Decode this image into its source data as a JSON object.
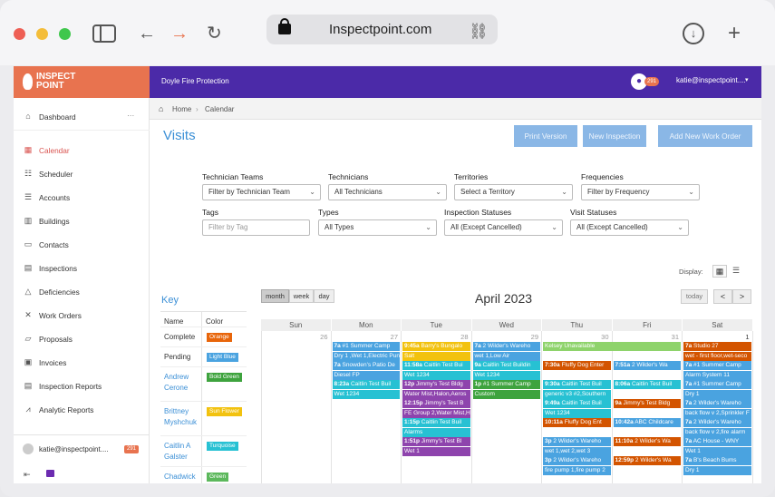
{
  "browser": {
    "url": "Inspectpoint.com"
  },
  "topbar": {
    "logo_line1": "INSPECT",
    "logo_line2": "POINT",
    "company": "Doyle Fire Protection",
    "notif_count": "291",
    "user": "katie@inspectpoint....",
    "accent": "#4b2aa8"
  },
  "sidebar": {
    "items": [
      {
        "label": "Dashboard",
        "icon": "home-icon"
      },
      {
        "label": "Calendar",
        "icon": "calendar-icon"
      },
      {
        "label": "Scheduler",
        "icon": "scheduler-icon"
      },
      {
        "label": "Accounts",
        "icon": "list-icon"
      },
      {
        "label": "Buildings",
        "icon": "building-icon"
      },
      {
        "label": "Contacts",
        "icon": "contact-card-icon"
      },
      {
        "label": "Inspections",
        "icon": "clipboard-icon"
      },
      {
        "label": "Deficiencies",
        "icon": "warning-icon"
      },
      {
        "label": "Work Orders",
        "icon": "wrench-icon"
      },
      {
        "label": "Proposals",
        "icon": "proposal-icon"
      },
      {
        "label": "Invoices",
        "icon": "invoice-icon"
      },
      {
        "label": "Inspection Reports",
        "icon": "report-icon"
      },
      {
        "label": "Analytic Reports",
        "icon": "chart-icon"
      }
    ],
    "footer_user": "katie@inspectpoint....",
    "footer_count": "291"
  },
  "breadcrumb": {
    "home": "Home",
    "current": "Calendar"
  },
  "page": {
    "title": "Visits",
    "btn_print": "Print Version",
    "btn_new_inspection": "New Inspection",
    "btn_new_work_order": "Add New Work Order"
  },
  "filters": {
    "technician_teams": {
      "label": "Technician Teams",
      "value": "Filter by Technician Team"
    },
    "technicians": {
      "label": "Technicians",
      "value": "All Technicians"
    },
    "territories": {
      "label": "Territories",
      "value": "Select a Territory"
    },
    "frequencies": {
      "label": "Frequencies",
      "value": "Filter by Frequency"
    },
    "tags": {
      "label": "Tags",
      "placeholder": "Filter by Tag"
    },
    "types": {
      "label": "Types",
      "value": "All Types"
    },
    "inspection_statuses": {
      "label": "Inspection Statuses",
      "value": "All (Except Cancelled)"
    },
    "visit_statuses": {
      "label": "Visit Statuses",
      "value": "All (Except Cancelled)"
    }
  },
  "display_label": "Display:",
  "key": {
    "title": "Key",
    "col_name": "Name",
    "col_color": "Color",
    "rows": [
      {
        "name": "Complete",
        "color_label": "Orange",
        "color": "#e8650a",
        "link": false
      },
      {
        "name": "Pending",
        "color_label": "Light Blue",
        "color": "#4aa3e0",
        "link": false
      },
      {
        "name": "Andrew Cerone",
        "color_label": "Bold Green",
        "color": "#3ea33e",
        "link": true
      },
      {
        "name": "Brittney Myshchuk",
        "color_label": "Sun Flower",
        "color": "#f2c20f",
        "link": true
      },
      {
        "name": "Caitlin A Galster",
        "color_label": "Turquoise",
        "color": "#27c1d3",
        "link": true
      },
      {
        "name": "Chadwick",
        "color_label": "Green",
        "color": "#5cb85c",
        "link": true
      }
    ]
  },
  "calendar": {
    "month_title": "April 2023",
    "view_month": "month",
    "view_week": "week",
    "view_day": "day",
    "today": "today",
    "prev": "<",
    "next": ">",
    "days": [
      "Sun",
      "Mon",
      "Tue",
      "Wed",
      "Thu",
      "Fri",
      "Sat"
    ],
    "dates": [
      "26",
      "27",
      "28",
      "29",
      "30",
      "31",
      "1"
    ],
    "events": [
      {
        "col": 1,
        "row": 0,
        "time": "7a",
        "text": "#1 Summer Camp",
        "color": "#4aa3e0"
      },
      {
        "col": 1,
        "row": 1,
        "time": "",
        "text": "Dry 1 ,Wet 1,Electric Pun",
        "color": "#4aa3e0"
      },
      {
        "col": 1,
        "row": 2,
        "time": "7a",
        "text": "Snowden's Patio De",
        "color": "#4aa3e0"
      },
      {
        "col": 1,
        "row": 3,
        "time": "",
        "text": "Diesel FP",
        "color": "#4aa3e0"
      },
      {
        "col": 1,
        "row": 4,
        "time": "8:23a",
        "text": "Caitlin Test Buil",
        "color": "#27c1d3"
      },
      {
        "col": 1,
        "row": 5,
        "time": "",
        "text": "Wet 1234",
        "color": "#27c1d3"
      },
      {
        "col": 2,
        "row": 0,
        "time": "9:45a",
        "text": "Barry's Bungalo",
        "color": "#f2c20f"
      },
      {
        "col": 2,
        "row": 1,
        "time": "",
        "text": "Salt",
        "color": "#f2c20f"
      },
      {
        "col": 2,
        "row": 2,
        "time": "11:58a",
        "text": "Caitlin Test Bui",
        "color": "#27c1d3"
      },
      {
        "col": 2,
        "row": 3,
        "time": "",
        "text": "Wet 1234",
        "color": "#27c1d3"
      },
      {
        "col": 2,
        "row": 4,
        "time": "12p",
        "text": "Jimmy's Test Bldg",
        "color": "#8e44ad"
      },
      {
        "col": 2,
        "row": 5,
        "time": "",
        "text": "Water Mist,Halon,Aeros",
        "color": "#8e44ad"
      },
      {
        "col": 2,
        "row": 6,
        "time": "12:15p",
        "text": "Jimmy's Test B",
        "color": "#8e44ad"
      },
      {
        "col": 2,
        "row": 7,
        "time": "",
        "text": "FE Group 2,Water Mist,H",
        "color": "#8e44ad"
      },
      {
        "col": 2,
        "row": 8,
        "time": "1:15p",
        "text": "Caitlin Test Buil",
        "color": "#27c1d3"
      },
      {
        "col": 2,
        "row": 9,
        "time": "",
        "text": "Alarms",
        "color": "#27c1d3"
      },
      {
        "col": 2,
        "row": 10,
        "time": "1:51p",
        "text": "Jimmy's Test Bl",
        "color": "#8e44ad"
      },
      {
        "col": 2,
        "row": 11,
        "time": "",
        "text": "Wet 1",
        "color": "#8e44ad"
      },
      {
        "col": 3,
        "row": 0,
        "time": "7a",
        "text": "2 Wilder's Wareho",
        "color": "#4aa3e0"
      },
      {
        "col": 3,
        "row": 1,
        "time": "",
        "text": "wet 1,Low Air",
        "color": "#4aa3e0"
      },
      {
        "col": 3,
        "row": 2,
        "time": "9a",
        "text": "Caitlin Test Buildin",
        "color": "#27c1d3"
      },
      {
        "col": 3,
        "row": 3,
        "time": "",
        "text": "Wet 1234",
        "color": "#27c1d3"
      },
      {
        "col": 3,
        "row": 4,
        "time": "1p",
        "text": "#1 Summer Camp",
        "color": "#3ea33e"
      },
      {
        "col": 3,
        "row": 5,
        "time": "",
        "text": "Custom",
        "color": "#3ea33e"
      },
      {
        "col": 4,
        "row": 0,
        "time": "",
        "text": "Kelsey Unavailable",
        "color": "#8ed36b",
        "span": 2
      },
      {
        "col": 4,
        "row": 2,
        "time": "7:30a",
        "text": "Fluffy Dog Enter",
        "color": "#d35400"
      },
      {
        "col": 4,
        "row": 4,
        "time": "9:30a",
        "text": "Caitlin Test Buil",
        "color": "#27c1d3"
      },
      {
        "col": 4,
        "row": 5,
        "time": "",
        "text": "generic v3 #2,Southern",
        "color": "#27c1d3"
      },
      {
        "col": 4,
        "row": 6,
        "time": "9:49a",
        "text": "Caitlin Test Buil",
        "color": "#27c1d3"
      },
      {
        "col": 4,
        "row": 7,
        "time": "",
        "text": "Wet 1234",
        "color": "#27c1d3"
      },
      {
        "col": 4,
        "row": 8,
        "time": "10:11a",
        "text": "Fluffy Dog Ent",
        "color": "#d35400"
      },
      {
        "col": 4,
        "row": 10,
        "time": "3p",
        "text": "2 Wilder's Wareho",
        "color": "#4aa3e0"
      },
      {
        "col": 4,
        "row": 11,
        "time": "",
        "text": "wet 1,wet 2,wet 3",
        "color": "#4aa3e0"
      },
      {
        "col": 4,
        "row": 12,
        "time": "3p",
        "text": "2 Wilder's Wareho",
        "color": "#4aa3e0"
      },
      {
        "col": 4,
        "row": 13,
        "time": "",
        "text": "fire pump 1,fire pump 2",
        "color": "#4aa3e0"
      },
      {
        "col": 5,
        "row": 2,
        "time": "7:51a",
        "text": "2 Wilder's Wa",
        "color": "#4aa3e0"
      },
      {
        "col": 5,
        "row": 4,
        "time": "8:06a",
        "text": "Caitlin Test Buil",
        "color": "#27c1d3"
      },
      {
        "col": 5,
        "row": 6,
        "time": "9a",
        "text": "Jimmy's Test Bldg",
        "color": "#d35400"
      },
      {
        "col": 5,
        "row": 8,
        "time": "10:42a",
        "text": "ABC Childcare",
        "color": "#4aa3e0"
      },
      {
        "col": 5,
        "row": 10,
        "time": "11:10a",
        "text": "2 Wilder's Wa",
        "color": "#d35400"
      },
      {
        "col": 5,
        "row": 12,
        "time": "12:59p",
        "text": "2 Wilder's Wa",
        "color": "#d35400"
      },
      {
        "col": 6,
        "row": 0,
        "time": "7a",
        "text": "Studio 27",
        "color": "#d35400"
      },
      {
        "col": 6,
        "row": 1,
        "time": "",
        "text": "wet - first floor,wet-seco",
        "color": "#d35400"
      },
      {
        "col": 6,
        "row": 2,
        "time": "7a",
        "text": "#1 Summer Camp",
        "color": "#4aa3e0"
      },
      {
        "col": 6,
        "row": 3,
        "time": "",
        "text": "Alarm System 11",
        "color": "#4aa3e0"
      },
      {
        "col": 6,
        "row": 4,
        "time": "7a",
        "text": "#1 Summer Camp",
        "color": "#4aa3e0"
      },
      {
        "col": 6,
        "row": 5,
        "time": "",
        "text": "Dry 1",
        "color": "#4aa3e0"
      },
      {
        "col": 6,
        "row": 6,
        "time": "7a",
        "text": "2 Wilder's Wareho",
        "color": "#4aa3e0"
      },
      {
        "col": 6,
        "row": 7,
        "time": "",
        "text": "back flow v 2,Sprinkler F",
        "color": "#4aa3e0"
      },
      {
        "col": 6,
        "row": 8,
        "time": "7a",
        "text": "2 Wilder's Wareho",
        "color": "#4aa3e0"
      },
      {
        "col": 6,
        "row": 9,
        "time": "",
        "text": "back flow v 2,fire alarm",
        "color": "#4aa3e0"
      },
      {
        "col": 6,
        "row": 10,
        "time": "7a",
        "text": "AC House - WNY",
        "color": "#4aa3e0"
      },
      {
        "col": 6,
        "row": 11,
        "time": "",
        "text": "Wet 1",
        "color": "#4aa3e0"
      },
      {
        "col": 6,
        "row": 12,
        "time": "7a",
        "text": "B's Beach Bums",
        "color": "#4aa3e0"
      },
      {
        "col": 6,
        "row": 13,
        "time": "",
        "text": "Dry 1",
        "color": "#4aa3e0"
      }
    ]
  }
}
